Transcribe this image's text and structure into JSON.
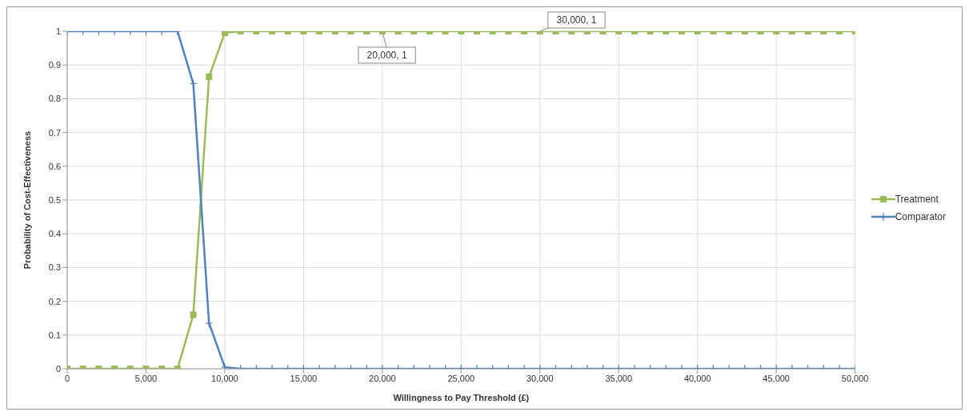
{
  "chart_data": {
    "type": "line",
    "xlabel": "Willingness to Pay Threshold (£)",
    "ylabel": "Probability of Cost-Effectiveness",
    "x": [
      0,
      1000,
      2000,
      3000,
      4000,
      5000,
      6000,
      7000,
      8000,
      9000,
      10000,
      11000,
      12000,
      13000,
      14000,
      15000,
      16000,
      17000,
      18000,
      19000,
      20000,
      21000,
      22000,
      23000,
      24000,
      25000,
      26000,
      27000,
      28000,
      29000,
      30000,
      31000,
      32000,
      33000,
      34000,
      35000,
      36000,
      37000,
      38000,
      39000,
      40000,
      41000,
      42000,
      43000,
      44000,
      45000,
      46000,
      47000,
      48000,
      49000,
      50000
    ],
    "series": [
      {
        "name": "Treatment",
        "color": "#9bbb59",
        "marker": "square",
        "values": [
          0,
          0,
          0,
          0,
          0,
          0,
          0,
          0,
          0.16,
          0.865,
          0.995,
          1,
          1,
          1,
          1,
          1,
          1,
          1,
          1,
          1,
          1,
          1,
          1,
          1,
          1,
          1,
          1,
          1,
          1,
          1,
          1,
          1,
          1,
          1,
          1,
          1,
          1,
          1,
          1,
          1,
          1,
          1,
          1,
          1,
          1,
          1,
          1,
          1,
          1,
          1,
          1
        ]
      },
      {
        "name": "Comparator",
        "color": "#4f81bd",
        "marker": "cross",
        "values": [
          1,
          1,
          1,
          1,
          1,
          1,
          1,
          1,
          0.845,
          0.135,
          0.005,
          0,
          0,
          0,
          0,
          0,
          0,
          0,
          0,
          0,
          0,
          0,
          0,
          0,
          0,
          0,
          0,
          0,
          0,
          0,
          0,
          0,
          0,
          0,
          0,
          0,
          0,
          0,
          0,
          0,
          0,
          0,
          0,
          0,
          0,
          0,
          0,
          0,
          0,
          0,
          0
        ]
      }
    ],
    "xlim": [
      0,
      50000
    ],
    "xticks": [
      0,
      {
        "value": 5000,
        "label": "5,000"
      },
      {
        "value": 10000,
        "label": "10,000"
      },
      {
        "value": 15000,
        "label": "15,000"
      },
      {
        "value": 20000,
        "label": "20,000"
      },
      {
        "value": 25000,
        "label": "25,000"
      },
      {
        "value": 30000,
        "label": "30,000"
      },
      {
        "value": 35000,
        "label": "35,000"
      },
      {
        "value": 40000,
        "label": "40,000"
      },
      {
        "value": 45000,
        "label": "45,000"
      },
      {
        "value": 50000,
        "label": "50,000"
      }
    ],
    "ylim": [
      0,
      1
    ],
    "yticks": [
      0,
      0.1,
      0.2,
      0.3,
      0.4,
      0.5,
      0.6,
      0.7,
      0.8,
      0.9,
      1
    ],
    "grid": true,
    "legend": "right",
    "line_style": "solid",
    "annotations": [
      {
        "text": "20,000, 1",
        "x": 20000,
        "y": 1
      },
      {
        "text": "30,000, 1",
        "x": 30000,
        "y": 1
      }
    ]
  }
}
